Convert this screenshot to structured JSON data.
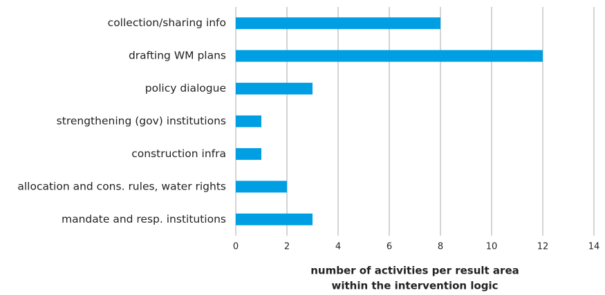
{
  "chart_data": {
    "type": "bar",
    "orientation": "horizontal",
    "categories": [
      "collection/sharing info",
      "drafting WM plans",
      "policy dialogue",
      "strengthening (gov) institutions",
      "construction infra",
      "allocation and cons. rules, water rights",
      "mandate and resp. institutions"
    ],
    "values": [
      8,
      12,
      3,
      1,
      1,
      2,
      3
    ],
    "color": "#009fe3",
    "xlim": [
      0,
      14
    ],
    "xticks": [
      0,
      2,
      4,
      6,
      8,
      10,
      12,
      14
    ],
    "grid": true,
    "xlabel": [
      "number of activities per result area",
      "within the intervention logic"
    ]
  }
}
